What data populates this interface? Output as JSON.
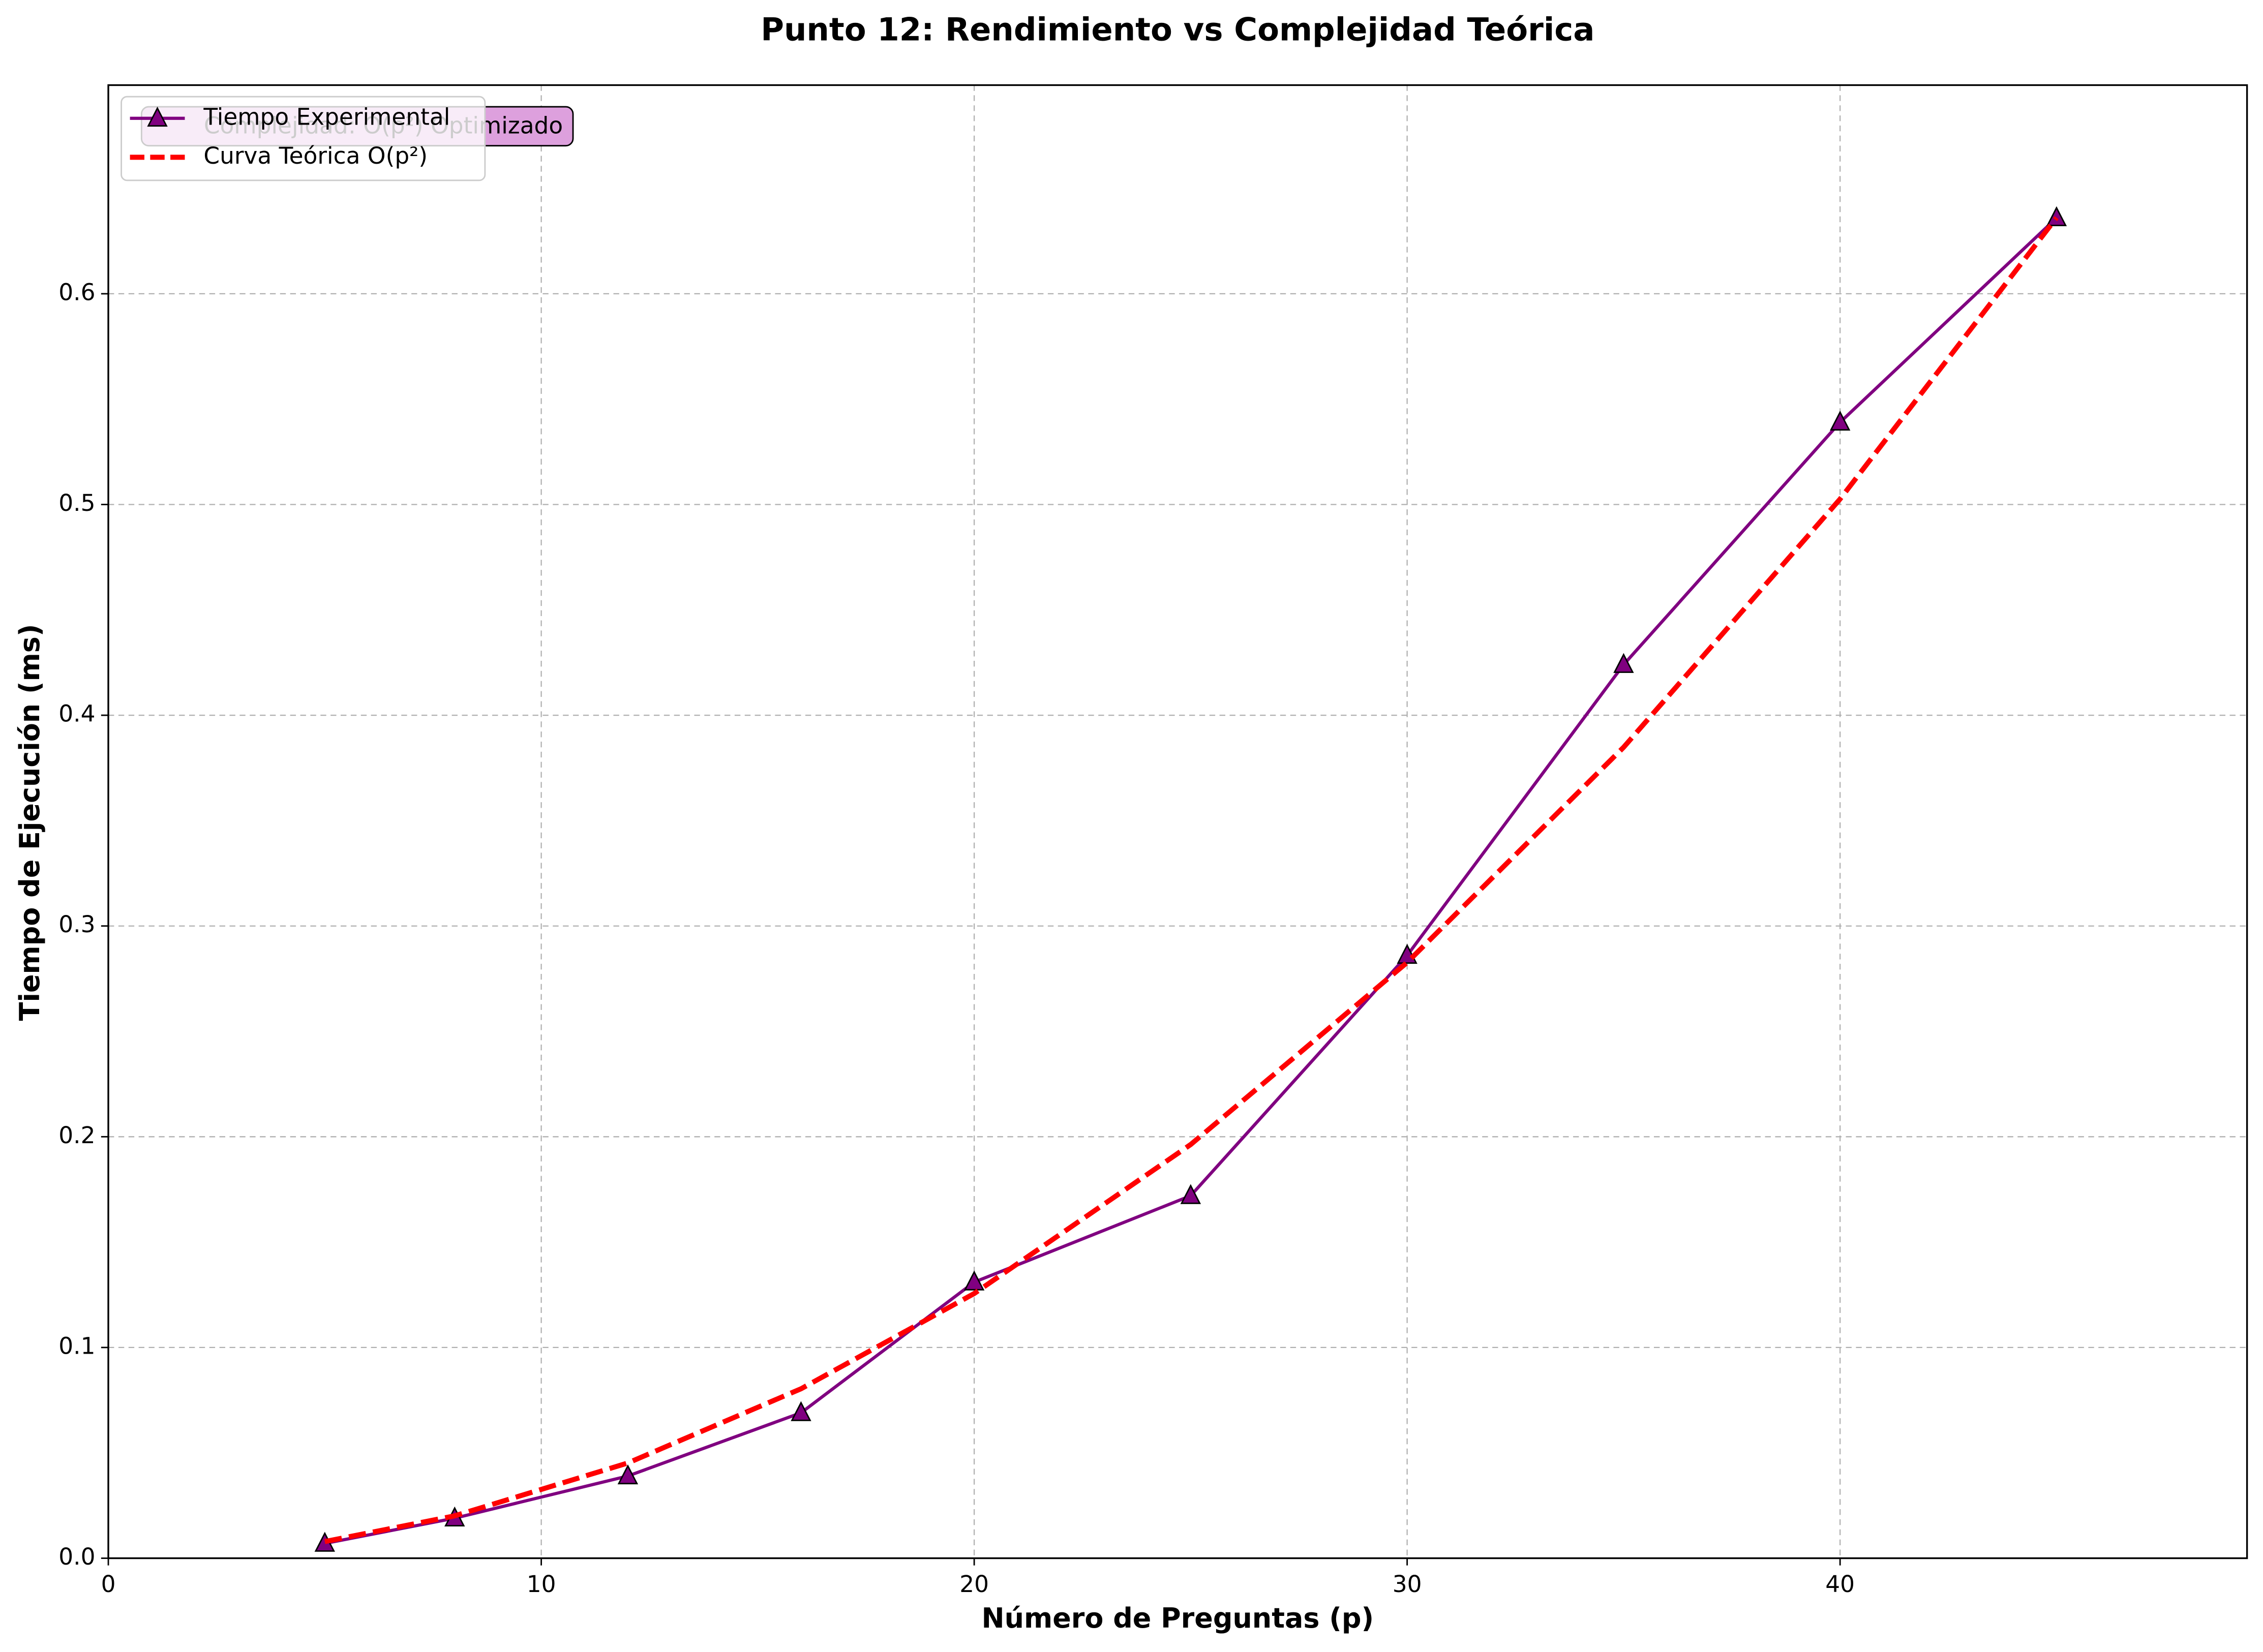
{
  "chart_data": {
    "type": "line",
    "title": "Punto 12: Rendimiento vs Complejidad Teórica",
    "x_label": "Número de Preguntas (p)",
    "y_label": "Tiempo de Ejecución (ms)",
    "annotation": "Complejidad: O(p²) Optimizado",
    "x": [
      5,
      8,
      12,
      16,
      20,
      25,
      30,
      35,
      40,
      45
    ],
    "series": [
      {
        "name": "Tiempo Experimental",
        "color": "#800080",
        "marker": "triangle",
        "dashed": false,
        "values": [
          0.007,
          0.019,
          0.039,
          0.069,
          0.131,
          0.172,
          0.286,
          0.424,
          0.539,
          0.636
        ]
      },
      {
        "name": "Curva Teórica O(p²)",
        "color": "#ff0000",
        "marker": "none",
        "dashed": true,
        "values": [
          0.0079,
          0.0201,
          0.0452,
          0.0804,
          0.1256,
          0.1963,
          0.2827,
          0.3848,
          0.5026,
          0.6361
        ]
      }
    ],
    "xlim": [
      0,
      49.4
    ],
    "xticks": [
      0,
      10,
      20,
      30,
      40
    ],
    "ylim": [
      0,
      0.699
    ],
    "yticks": [
      {
        "value": 0,
        "label": "0.0"
      },
      {
        "value": 0.1,
        "label": "0.1"
      },
      {
        "value": 0.2,
        "label": "0.2"
      },
      {
        "value": 0.3,
        "label": "0.3"
      },
      {
        "value": 0.4,
        "label": "0.4"
      },
      {
        "value": 0.5,
        "label": "0.5"
      },
      {
        "value": 0.6,
        "label": "0.6"
      }
    ],
    "grid": true,
    "legend": "upper left"
  }
}
